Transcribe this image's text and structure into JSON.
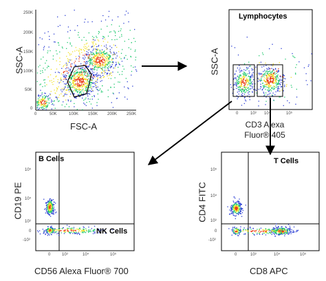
{
  "colors": {
    "density_low": "#2c3fd4",
    "density_mid": "#1fc96e",
    "density_high": "#f2e12a",
    "density_peak": "#e83a16",
    "axis": "#000000",
    "arrow": "#000000"
  },
  "panel1": {
    "xlabel": "FSC-A",
    "ylabel": "SSC-A",
    "yticks": [
      "250K",
      "200K",
      "150K",
      "100K",
      "50K",
      "0"
    ],
    "xticks": [
      "0",
      "50K",
      "100K",
      "150K",
      "200K",
      "250K"
    ]
  },
  "panel2": {
    "gate_title": "Lymphocytes",
    "ylabel": "SSC-A",
    "xticks": [
      "0",
      "10³",
      "10⁴",
      "10⁵"
    ],
    "caption_line1": "CD3 Alexa",
    "caption_line2": "Fluor® 405"
  },
  "panel3": {
    "gate_top": "B Cells",
    "gate_bottom": "NK Cells",
    "ylabel": "CD19 PE",
    "yticks": [
      "10⁵",
      "10⁴",
      "10³",
      "0",
      "-10³"
    ],
    "xticks": [
      "0",
      "10³",
      "10⁴",
      "10⁵"
    ],
    "caption": "CD56 Alexa Fluor® 700"
  },
  "panel4": {
    "gate_top": "T Cells",
    "ylabel": "CD4 FITC",
    "yticks": [
      "10⁵",
      "10⁴",
      "10³",
      "0",
      "-10³"
    ],
    "xticks": [
      "0",
      "10³",
      "10⁴",
      "10⁵"
    ],
    "caption": "CD8 APC"
  }
}
